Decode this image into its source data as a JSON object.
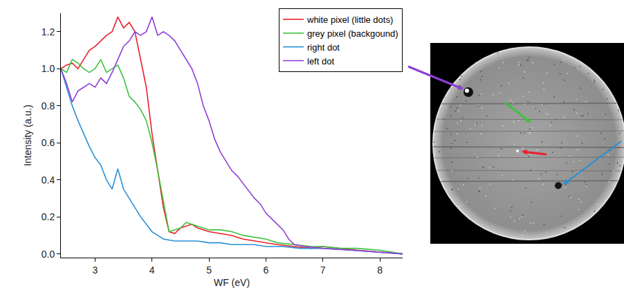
{
  "chart_data": {
    "type": "line",
    "x_label": "WF (eV)",
    "y_label": "Intensity (a.u.)",
    "xlim": [
      2.4,
      8.4
    ],
    "xticks": [
      3,
      4,
      5,
      6,
      7,
      8
    ],
    "ylim": [
      -0.02,
      1.3
    ],
    "yticks": [
      {
        "value": 0,
        "label": "0.0"
      },
      0.2,
      0.4,
      0.6,
      0.8,
      {
        "value": 1,
        "label": "1.0"
      },
      1.2
    ],
    "grid": false,
    "legend": "top right",
    "series": [
      {
        "name": "white pixel (little dots)",
        "color": "#e8202a",
        "x": [
          2.4,
          2.5,
          2.6,
          2.7,
          2.8,
          2.9,
          3.0,
          3.1,
          3.2,
          3.3,
          3.4,
          3.5,
          3.6,
          3.7,
          3.8,
          3.9,
          4.0,
          4.1,
          4.2,
          4.3,
          4.4,
          4.5,
          4.6,
          4.7,
          4.8,
          4.9,
          5.0,
          5.2,
          5.4,
          5.6,
          5.8,
          6.0,
          6.2,
          6.5,
          6.8,
          7.0,
          7.3,
          7.6,
          8.0,
          8.4
        ],
        "values": [
          1.0,
          1.02,
          1.03,
          1.0,
          1.05,
          1.1,
          1.12,
          1.15,
          1.18,
          1.2,
          1.28,
          1.22,
          1.25,
          1.2,
          1.05,
          0.9,
          0.65,
          0.45,
          0.25,
          0.12,
          0.11,
          0.14,
          0.15,
          0.16,
          0.14,
          0.13,
          0.12,
          0.11,
          0.1,
          0.08,
          0.07,
          0.06,
          0.05,
          0.04,
          0.03,
          0.04,
          0.03,
          0.02,
          0.01,
          0.0
        ]
      },
      {
        "name": "grey pixel (backgound)",
        "color": "#3dc23d",
        "x": [
          2.4,
          2.5,
          2.6,
          2.7,
          2.8,
          2.9,
          3.0,
          3.1,
          3.2,
          3.3,
          3.4,
          3.5,
          3.6,
          3.7,
          3.8,
          3.9,
          4.0,
          4.1,
          4.2,
          4.3,
          4.4,
          4.5,
          4.6,
          4.7,
          4.8,
          4.9,
          5.0,
          5.2,
          5.4,
          5.6,
          5.8,
          6.0,
          6.2,
          6.5,
          6.8,
          7.0,
          7.3,
          7.6,
          8.0,
          8.4
        ],
        "values": [
          1.0,
          0.98,
          1.05,
          1.03,
          1.0,
          0.98,
          1.0,
          1.05,
          0.98,
          1.0,
          1.02,
          0.95,
          0.85,
          0.82,
          0.78,
          0.72,
          0.6,
          0.45,
          0.28,
          0.12,
          0.13,
          0.14,
          0.17,
          0.16,
          0.15,
          0.14,
          0.13,
          0.13,
          0.12,
          0.1,
          0.09,
          0.08,
          0.06,
          0.05,
          0.04,
          0.04,
          0.03,
          0.03,
          0.02,
          0.0
        ]
      },
      {
        "name": "right dot",
        "color": "#2a8fd6",
        "x": [
          2.4,
          2.5,
          2.6,
          2.7,
          2.8,
          2.9,
          3.0,
          3.1,
          3.2,
          3.3,
          3.4,
          3.5,
          3.6,
          3.7,
          3.8,
          3.9,
          4.0,
          4.1,
          4.2,
          4.4,
          4.6,
          4.8,
          5.0,
          5.2,
          5.4,
          5.6,
          5.8,
          6.0,
          6.3,
          6.6,
          7.0,
          7.5,
          8.0,
          8.4
        ],
        "values": [
          1.0,
          0.9,
          0.8,
          0.72,
          0.65,
          0.58,
          0.52,
          0.48,
          0.4,
          0.35,
          0.46,
          0.35,
          0.3,
          0.25,
          0.2,
          0.16,
          0.12,
          0.1,
          0.08,
          0.07,
          0.07,
          0.07,
          0.06,
          0.06,
          0.05,
          0.05,
          0.05,
          0.04,
          0.04,
          0.03,
          0.03,
          0.02,
          0.01,
          0.0
        ]
      },
      {
        "name": "left dot",
        "color": "#8e3fd6",
        "x": [
          2.4,
          2.5,
          2.6,
          2.7,
          2.8,
          2.9,
          3.0,
          3.1,
          3.2,
          3.3,
          3.4,
          3.5,
          3.6,
          3.7,
          3.8,
          3.9,
          4.0,
          4.1,
          4.2,
          4.3,
          4.4,
          4.5,
          4.6,
          4.7,
          4.8,
          4.9,
          5.0,
          5.1,
          5.2,
          5.3,
          5.4,
          5.5,
          5.6,
          5.7,
          5.8,
          5.9,
          6.0,
          6.1,
          6.2,
          6.3,
          6.4,
          6.5,
          6.7,
          7.0,
          7.5,
          8.0,
          8.4
        ],
        "values": [
          1.0,
          0.92,
          0.82,
          0.88,
          0.9,
          0.92,
          0.9,
          0.95,
          0.92,
          0.98,
          1.05,
          1.12,
          1.15,
          1.2,
          1.18,
          1.2,
          1.28,
          1.18,
          1.2,
          1.18,
          1.15,
          1.1,
          1.05,
          1.0,
          0.92,
          0.8,
          0.72,
          0.62,
          0.55,
          0.5,
          0.45,
          0.42,
          0.38,
          0.34,
          0.3,
          0.27,
          0.22,
          0.19,
          0.16,
          0.13,
          0.08,
          0.05,
          0.04,
          0.03,
          0.02,
          0.01,
          0.0
        ]
      }
    ]
  }
}
